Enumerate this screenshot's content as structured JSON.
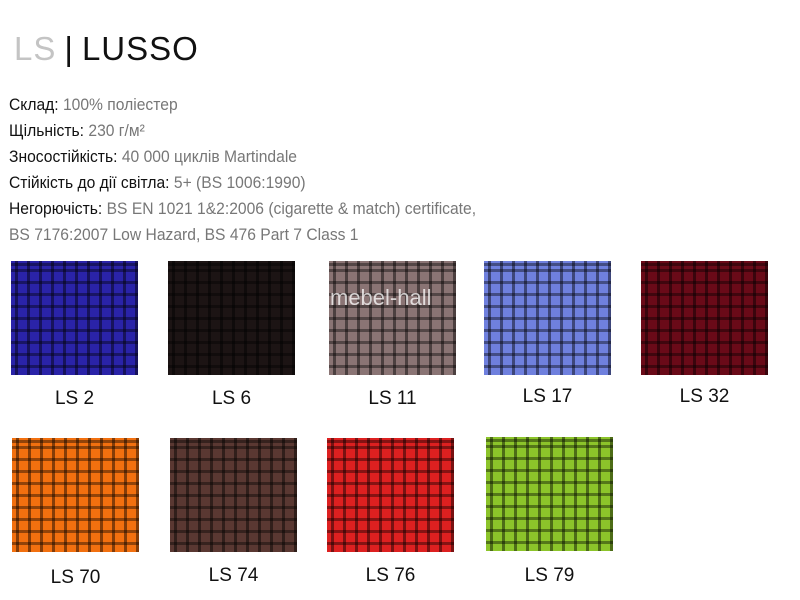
{
  "title": {
    "code": "LS",
    "separator": "|",
    "name": "LUSSO"
  },
  "specs": [
    {
      "label": "Склад:",
      "value": "100% поліестер"
    },
    {
      "label": "Щільність:",
      "value": "230 г/м²"
    },
    {
      "label": "Зносостійкість:",
      "value": "40 000 циклів Martindale"
    },
    {
      "label": "Стійкість до дії світла:",
      "value": "5+ (BS 1006:1990)"
    },
    {
      "label": "Негорючість:",
      "value": "BS EN 1021 1&2:2006 (cigarette & match) certificate,"
    },
    {
      "label": "",
      "value": "BS 7176:2007 Low Hazard, BS 476 Part 7 Class 1"
    }
  ],
  "watermark": "mebel-hall",
  "swatches": [
    {
      "label": "LS 2",
      "color": "#2a23a8"
    },
    {
      "label": "LS 6",
      "color": "#1c1414"
    },
    {
      "label": "LS 11",
      "color": "#8a7474"
    },
    {
      "label": "LS 17",
      "color": "#6f80de"
    },
    {
      "label": "LS 32",
      "color": "#6a0a18"
    },
    {
      "label": "LS 70",
      "color": "#f2700f"
    },
    {
      "label": "LS 74",
      "color": "#5a3832"
    },
    {
      "label": "LS 76",
      "color": "#dd2020"
    },
    {
      "label": "LS 79",
      "color": "#8cc42a"
    }
  ]
}
